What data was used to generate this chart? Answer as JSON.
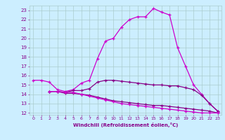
{
  "xlabel": "Windchill (Refroidissement éolien,°C)",
  "bg_color": "#cceeff",
  "grid_color": "#aacccc",
  "line_color": "#cc00cc",
  "line_color2": "#880088",
  "xlim": [
    -0.5,
    23.5
  ],
  "ylim": [
    11.8,
    23.5
  ],
  "xticks": [
    0,
    1,
    2,
    3,
    4,
    5,
    6,
    7,
    8,
    9,
    10,
    11,
    12,
    13,
    14,
    15,
    16,
    17,
    18,
    19,
    20,
    21,
    22,
    23
  ],
  "yticks": [
    12,
    13,
    14,
    15,
    16,
    17,
    18,
    19,
    20,
    21,
    22,
    23
  ],
  "line1_x": [
    0,
    1,
    2,
    3,
    4,
    5,
    6,
    7,
    8,
    9,
    10,
    11,
    12,
    13,
    14,
    15,
    16,
    17,
    18,
    19,
    20,
    21,
    22,
    23
  ],
  "line1_y": [
    15.5,
    15.5,
    15.3,
    14.5,
    14.3,
    14.5,
    15.2,
    15.5,
    17.8,
    19.7,
    20.0,
    21.2,
    22.0,
    22.3,
    22.3,
    23.2,
    22.8,
    22.5,
    19.0,
    17.0,
    15.0,
    14.0,
    13.0,
    12.2
  ],
  "line2_x": [
    2,
    3,
    4,
    5,
    6,
    7,
    8,
    9,
    10,
    11,
    12,
    13,
    14,
    15,
    16,
    17,
    18,
    19,
    20,
    21,
    22,
    23
  ],
  "line2_y": [
    14.3,
    14.3,
    14.2,
    14.4,
    14.4,
    14.6,
    15.3,
    15.5,
    15.5,
    15.4,
    15.3,
    15.2,
    15.1,
    15.0,
    15.0,
    14.9,
    14.9,
    14.7,
    14.5,
    13.9,
    13.0,
    12.2
  ],
  "line3_x": [
    2,
    3,
    4,
    5,
    6,
    7,
    8,
    9,
    10,
    11,
    12,
    13,
    14,
    15,
    16,
    17,
    18,
    19,
    20,
    21,
    22,
    23
  ],
  "line3_y": [
    14.3,
    14.3,
    14.1,
    14.1,
    14.0,
    13.9,
    13.7,
    13.5,
    13.3,
    13.2,
    13.1,
    13.0,
    12.9,
    12.8,
    12.8,
    12.7,
    12.6,
    12.5,
    12.4,
    12.3,
    12.2,
    12.0
  ],
  "line4_x": [
    2,
    3,
    4,
    5,
    6,
    7,
    8,
    9,
    10,
    11,
    12,
    13,
    14,
    15,
    16,
    17,
    18,
    19,
    20,
    21,
    22,
    23
  ],
  "line4_y": [
    14.3,
    14.3,
    14.2,
    14.2,
    14.0,
    13.8,
    13.6,
    13.4,
    13.2,
    13.0,
    12.9,
    12.8,
    12.7,
    12.6,
    12.5,
    12.4,
    12.3,
    12.2,
    12.1,
    12.0,
    12.0,
    12.0
  ]
}
